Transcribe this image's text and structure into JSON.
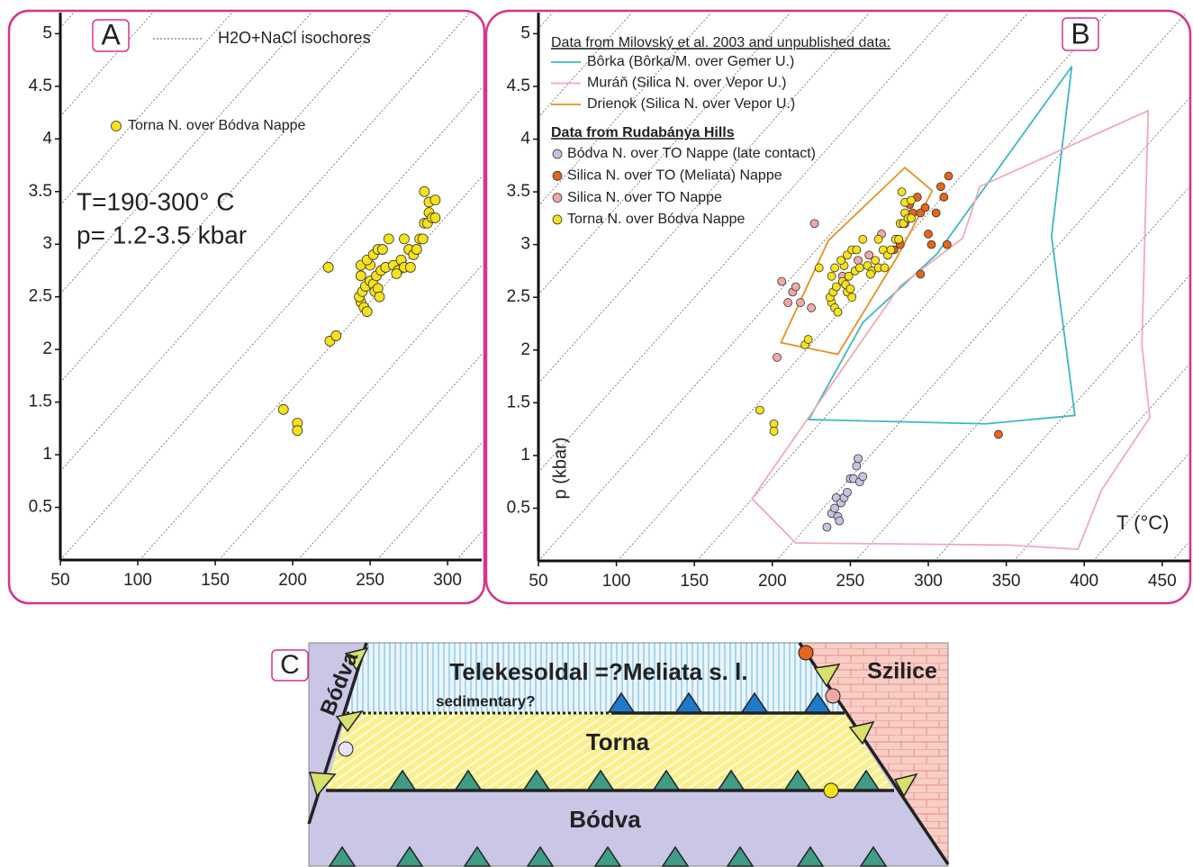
{
  "chart_data": [
    {
      "type": "scatter",
      "panel_label": "A",
      "isochore_label": "H2O+NaCl isochores",
      "annotations": [
        "T=190-300° C",
        "p= 1.2-3.5 kbar"
      ],
      "xlim": [
        50,
        322
      ],
      "ylim": [
        0,
        5.2
      ],
      "xticks": [
        50,
        100,
        150,
        200,
        250,
        300
      ],
      "yticks": [
        0.5,
        1,
        1.5,
        2,
        2.5,
        3,
        3.5,
        4,
        4.5,
        5
      ],
      "series": [
        {
          "name": "Torna N. over Bódva Nappe",
          "color": "#f7e21a",
          "marker": "circle",
          "x": [
            194,
            203,
            203,
            223,
            224,
            228,
            244,
            246,
            248,
            243,
            245,
            247,
            244,
            244,
            250,
            252,
            253,
            255,
            256,
            254,
            250,
            248,
            252,
            255,
            258,
            257,
            260,
            262,
            265,
            268,
            267,
            270,
            272,
            272,
            275,
            276,
            278,
            280,
            282,
            284,
            285,
            287,
            288,
            290,
            292,
            288,
            292,
            285
          ],
          "values": [
            1.43,
            1.3,
            1.23,
            2.78,
            2.08,
            2.13,
            2.45,
            2.4,
            2.36,
            2.5,
            2.55,
            2.6,
            2.7,
            2.8,
            2.65,
            2.62,
            2.55,
            2.58,
            2.5,
            2.7,
            2.8,
            2.85,
            2.9,
            2.95,
            2.95,
            2.75,
            2.78,
            3.05,
            2.8,
            2.75,
            2.72,
            2.85,
            2.78,
            3.05,
            2.95,
            2.78,
            2.9,
            2.95,
            3.05,
            3.05,
            3.2,
            3.2,
            3.3,
            3.25,
            3.25,
            3.4,
            3.42,
            3.5
          ]
        }
      ]
    },
    {
      "type": "scatter",
      "panel_label": "B",
      "x_label": "T (°C)",
      "y_label": "p (kbar)",
      "legend_titles": [
        "Data from Milovský et al. 2003 and unpublished data:",
        "Data from Rudabánya Hills"
      ],
      "xlim": [
        50,
        468
      ],
      "ylim": [
        0,
        5.2
      ],
      "xticks": [
        50,
        100,
        150,
        200,
        250,
        300,
        350,
        400,
        450
      ],
      "yticks": [
        0.5,
        1,
        1.5,
        2,
        2.5,
        3,
        3.5,
        4,
        4.5,
        5
      ],
      "series": [
        {
          "name": "Bôrka (Bôrka/M. over Gemer U.)",
          "color": "#3bb8c4",
          "marker": "polygon",
          "x": [
            223.4,
            258,
            305.5,
            392,
            379,
            394,
            337
          ],
          "values": [
            1.34,
            2.26,
            2.91,
            4.69,
            3.08,
            1.38,
            1.3
          ]
        },
        {
          "name": "Muráň (Silica N. over Vepor U.)",
          "color": "#f2aab4",
          "marker": "polygon",
          "x": [
            187,
            282,
            322,
            333,
            441,
            437,
            442,
            411,
            396,
            352,
            215
          ],
          "values": [
            0.59,
            2.61,
            3.06,
            3.55,
            4.27,
            2.05,
            1.36,
            0.67,
            0.11,
            0.15,
            0.17
          ]
        },
        {
          "name": "Drienok (Silica N. over Vepor U.)",
          "color": "#e8901e",
          "marker": "polygon",
          "x": [
            205.5,
            236,
            285,
            302.6,
            279.5,
            242
          ],
          "values": [
            2.07,
            3.04,
            3.73,
            3.51,
            2.87,
            1.96
          ]
        },
        {
          "name": "Bódva N. over TO Nappe (late contact)",
          "color": "#c6c3e0",
          "marker": "circle",
          "x": [
            235,
            238,
            240,
            242,
            241,
            244,
            246,
            248,
            250,
            252,
            254,
            255,
            256,
            258,
            243
          ],
          "values": [
            0.32,
            0.45,
            0.5,
            0.42,
            0.6,
            0.55,
            0.6,
            0.65,
            0.78,
            0.78,
            0.9,
            0.97,
            0.75,
            0.8,
            0.38
          ]
        },
        {
          "name": "Silica N. over TO (Meliata) Nappe",
          "color": "#e2661c",
          "marker": "circle",
          "x": [
            290,
            293,
            295,
            298,
            300,
            305,
            308,
            313,
            310,
            312,
            302,
            295,
            345,
            282,
            280,
            285,
            288,
            278
          ],
          "values": [
            3.3,
            3.45,
            3.3,
            3.35,
            3.1,
            3.3,
            3.55,
            3.65,
            3.45,
            3.0,
            3.0,
            2.72,
            1.2,
            3.0,
            3.05,
            3.2,
            3.38,
            2.95
          ]
        },
        {
          "name": "Silica N. over TO  Nappe",
          "color": "#f0a8a8",
          "marker": "circle",
          "x": [
            203,
            206,
            210,
            213,
            215,
            218,
            225,
            227,
            255,
            262,
            270,
            245
          ],
          "values": [
            1.93,
            2.65,
            2.45,
            2.55,
            2.6,
            2.45,
            2.4,
            3.2,
            2.85,
            2.9,
            3.1,
            2.7
          ]
        },
        {
          "name": "Torna N. over Bódva Nappe",
          "color": "#f7e21a",
          "marker": "circle",
          "x": [
            192,
            201,
            201,
            221,
            223,
            230,
            238,
            240,
            242,
            237,
            239,
            241,
            238,
            240,
            245,
            247,
            248,
            250,
            251,
            249,
            246,
            244,
            248,
            251,
            254,
            253,
            256,
            258,
            261,
            264,
            263,
            266,
            268,
            268,
            271,
            272,
            274,
            276,
            279,
            281,
            282,
            284,
            285,
            287,
            289,
            285,
            289,
            283
          ],
          "values": [
            1.43,
            1.3,
            1.23,
            2.05,
            2.1,
            2.78,
            2.45,
            2.4,
            2.36,
            2.5,
            2.55,
            2.6,
            2.7,
            2.78,
            2.65,
            2.62,
            2.55,
            2.58,
            2.5,
            2.7,
            2.8,
            2.85,
            2.9,
            2.95,
            2.95,
            2.75,
            2.78,
            3.05,
            2.8,
            2.75,
            2.72,
            2.85,
            2.78,
            3.05,
            2.95,
            2.78,
            2.9,
            2.95,
            3.05,
            3.05,
            3.2,
            3.2,
            3.3,
            3.25,
            3.25,
            3.4,
            3.42,
            3.5
          ]
        }
      ]
    }
  ],
  "diagram": {
    "label": "C",
    "left_unit": "Bódva",
    "top_unit": "Telekesoldal =?Meliata s. l.",
    "top_note": "sedimentary?",
    "middle_unit": "Torna",
    "right_unit": "Szilice",
    "bottom_unit": "Bódva"
  }
}
